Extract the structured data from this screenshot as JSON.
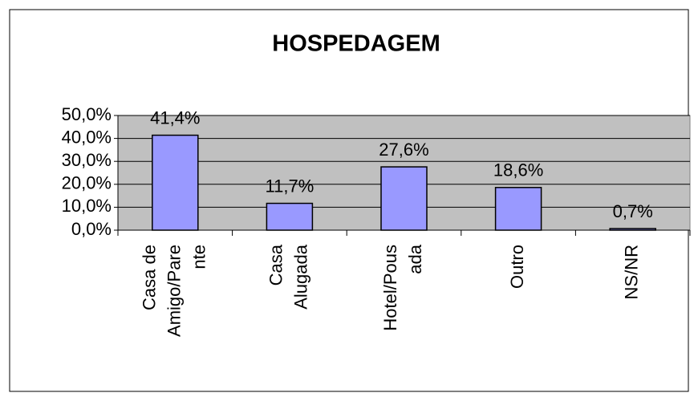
{
  "chart_data": {
    "type": "bar",
    "title": "HOSPEDAGEM",
    "categories": [
      "Casa de Amigo/Parente",
      "Casa Alugada",
      "Hotel/Pousada",
      "Outro",
      "NS/NR"
    ],
    "values": [
      41.4,
      11.7,
      27.6,
      18.6,
      0.7
    ],
    "value_labels": [
      "41,4%",
      "11,7%",
      "27,6%",
      "18,6%",
      "0,7%"
    ],
    "color": "#9999ff",
    "ylim": [
      0,
      50
    ],
    "yticks": [
      {
        "value": 0,
        "label": "0,0%"
      },
      {
        "value": 10,
        "label": "10,0%"
      },
      {
        "value": 20,
        "label": "20,0%"
      },
      {
        "value": 30,
        "label": "30,0%"
      },
      {
        "value": 40,
        "label": "40,0%"
      },
      {
        "value": 50,
        "label": "50,0%"
      }
    ],
    "grid": true
  }
}
